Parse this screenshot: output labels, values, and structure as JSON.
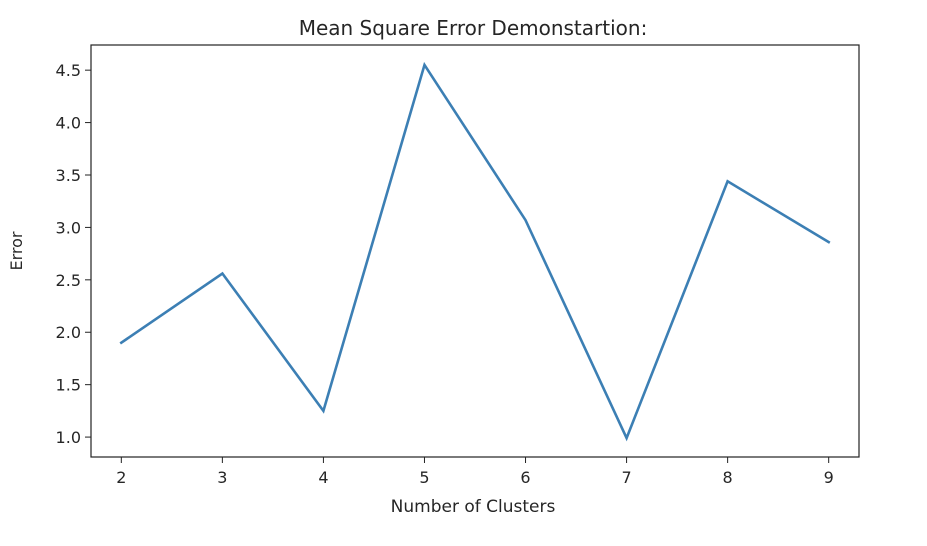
{
  "chart_data": {
    "type": "line",
    "title": "Mean Square Error Demonstartion:",
    "xlabel": "Number of Clusters",
    "ylabel": "Error",
    "x": [
      2,
      3,
      4,
      5,
      6,
      7,
      8,
      9
    ],
    "series": [
      {
        "values": [
          1.9,
          2.56,
          1.25,
          4.55,
          3.07,
          0.99,
          3.44,
          2.86
        ],
        "color": "#3c7fb4"
      }
    ],
    "xlim": [
      1.7,
      9.3
    ],
    "ylim": [
      0.81,
      4.74
    ],
    "xticks": [
      "2",
      "3",
      "4",
      "5",
      "6",
      "7",
      "8",
      "9"
    ],
    "yticks": [
      "1.0",
      "1.5",
      "2.0",
      "2.5",
      "3.0",
      "3.5",
      "4.0",
      "4.5"
    ],
    "grid": false,
    "legend": "none"
  }
}
